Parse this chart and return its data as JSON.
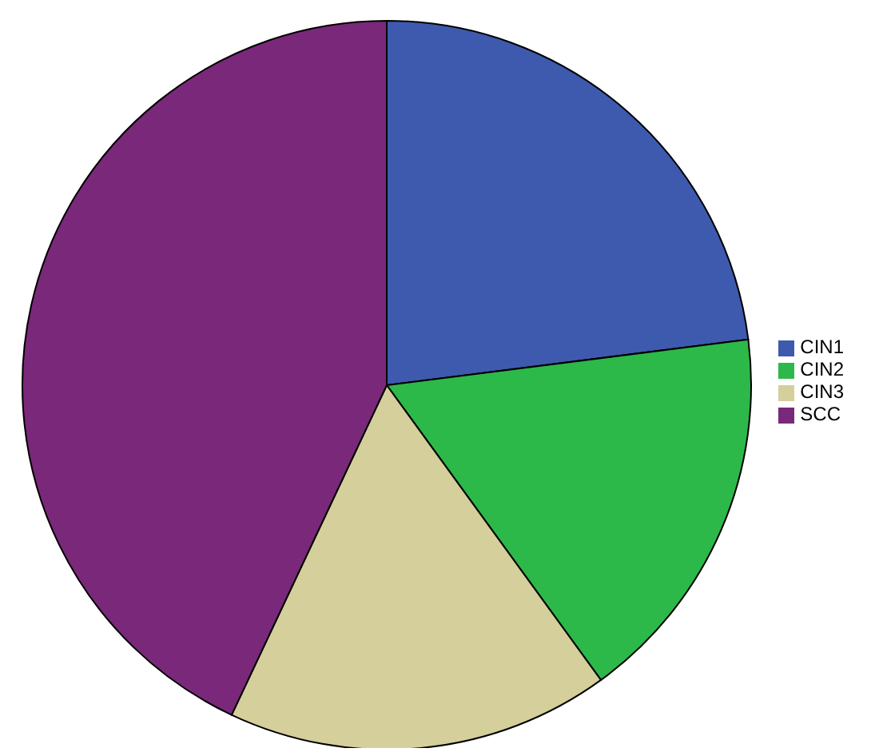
{
  "chart_data": {
    "type": "pie",
    "categories": [
      "CIN1",
      "CIN2",
      "CIN3",
      "SCC"
    ],
    "values": [
      23,
      17,
      17,
      43
    ],
    "colors": [
      "#3e5aae",
      "#2db84a",
      "#d4cf9b",
      "#7a287a"
    ],
    "legend": "right"
  }
}
